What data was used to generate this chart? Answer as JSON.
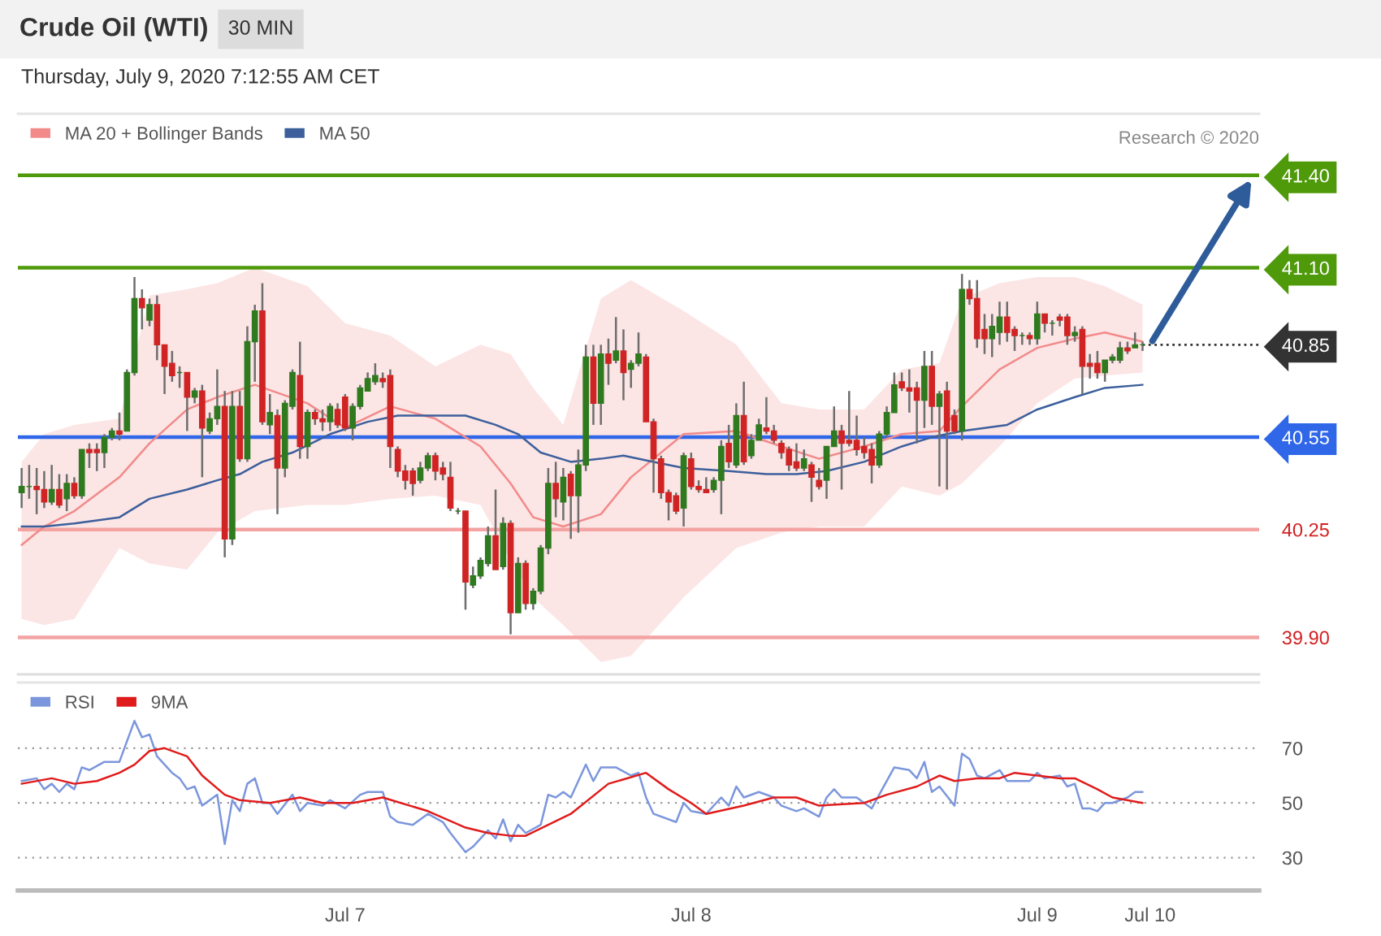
{
  "chart_data": [
    {
      "type": "candlestick",
      "title": "Crude Oil (WTI)",
      "subtitle": "Thursday, July 9, 2020 7:12:55 AM CET",
      "annotations": [
        "30 MIN",
        "Research © 2020"
      ],
      "ylim": [
        39.78,
        41.6
      ],
      "tick_labels": "y",
      "legend": "top left",
      "grid": false,
      "yticks": [
        {
          "value": 41.4,
          "label": "41.40"
        },
        {
          "value": 41.1,
          "label": "41.10"
        },
        {
          "value": 40.85,
          "label": "40.85"
        },
        {
          "value": 40.55,
          "label": "40.55"
        },
        {
          "value": 40.25,
          "label": "40.25"
        },
        {
          "value": 39.9,
          "label": "39.90"
        }
      ],
      "categories": [
        null,
        null,
        null,
        null,
        null,
        null,
        null,
        null,
        null,
        null,
        null,
        null,
        null,
        null,
        null,
        null,
        null,
        null,
        null,
        null,
        null,
        null,
        null,
        null,
        null,
        null,
        null,
        null,
        null,
        null,
        null,
        null,
        null,
        null,
        null,
        null,
        null,
        null,
        null,
        null,
        null,
        null,
        null,
        null,
        null,
        null,
        null,
        null,
        null,
        null,
        null,
        null,
        null,
        null,
        null,
        null,
        null,
        null,
        null,
        null,
        null,
        null,
        null,
        null,
        null,
        null,
        null,
        null,
        null,
        null,
        null,
        null,
        null,
        null,
        null,
        null,
        null,
        null,
        null,
        null,
        null,
        null,
        null,
        null,
        null,
        null,
        null,
        null,
        null,
        null,
        null,
        null,
        null,
        null,
        null,
        null,
        null,
        null,
        null,
        null,
        null,
        null,
        null,
        null,
        null,
        null,
        null,
        null,
        null,
        null,
        null,
        null,
        null,
        null,
        null,
        null,
        null,
        null,
        null,
        null,
        null,
        null,
        null,
        null,
        null,
        null,
        null,
        null,
        null,
        null,
        null,
        null,
        null,
        null,
        null,
        null,
        null,
        null,
        null,
        null,
        null,
        null,
        null,
        null,
        null,
        null,
        null,
        null,
        null,
        null,
        null,
        null,
        null,
        null,
        null,
        null,
        null,
        null,
        null,
        null,
        null,
        null,
        null,
        null,
        null
      ],
      "ohlc": [
        [
          40.37,
          40.45,
          40.32,
          40.39
        ],
        [
          40.39,
          40.46,
          40.35,
          40.39
        ],
        [
          40.39,
          40.45,
          40.3,
          40.38
        ],
        [
          40.38,
          40.44,
          40.32,
          40.34
        ],
        [
          40.34,
          40.46,
          40.33,
          40.38
        ],
        [
          40.38,
          40.43,
          40.32,
          40.33
        ],
        [
          40.35,
          40.43,
          40.31,
          40.4
        ],
        [
          40.4,
          40.42,
          40.35,
          40.36
        ],
        [
          40.36,
          40.51,
          40.35,
          40.51
        ],
        [
          40.51,
          40.53,
          40.45,
          40.5
        ],
        [
          40.51,
          40.53,
          40.44,
          40.5
        ],
        [
          40.5,
          40.56,
          40.45,
          40.55
        ],
        [
          40.55,
          40.58,
          40.54,
          40.57
        ],
        [
          40.57,
          40.63,
          40.54,
          40.56
        ],
        [
          40.57,
          40.77,
          40.57,
          40.76
        ],
        [
          40.76,
          41.07,
          40.75,
          41.0
        ],
        [
          41.0,
          41.03,
          40.9,
          40.97
        ],
        [
          40.93,
          41.0,
          40.91,
          40.98
        ],
        [
          40.98,
          41.01,
          40.8,
          40.85
        ],
        [
          40.85,
          40.85,
          40.69,
          40.78
        ],
        [
          40.79,
          40.83,
          40.73,
          40.75
        ],
        [
          40.76,
          40.78,
          40.71,
          40.76
        ],
        [
          40.76,
          40.76,
          40.57,
          40.68
        ],
        [
          40.68,
          40.71,
          40.66,
          40.7
        ],
        [
          40.7,
          40.72,
          40.42,
          40.58
        ],
        [
          40.57,
          40.63,
          40.56,
          40.61
        ],
        [
          40.61,
          40.77,
          40.59,
          40.65
        ],
        [
          40.65,
          40.7,
          40.16,
          40.22
        ],
        [
          40.22,
          40.7,
          40.2,
          40.65
        ],
        [
          40.65,
          40.7,
          40.47,
          40.48
        ],
        [
          40.48,
          40.91,
          40.47,
          40.86
        ],
        [
          40.86,
          40.98,
          40.73,
          40.96
        ],
        [
          40.96,
          41.05,
          40.59,
          40.6
        ],
        [
          40.59,
          40.69,
          40.56,
          40.63
        ],
        [
          40.62,
          40.64,
          40.3,
          40.45
        ],
        [
          40.45,
          40.67,
          40.42,
          40.66
        ],
        [
          40.65,
          40.77,
          40.64,
          40.76
        ],
        [
          40.75,
          40.86,
          40.48,
          40.52
        ],
        [
          40.52,
          40.64,
          40.48,
          40.63
        ],
        [
          40.63,
          40.64,
          40.59,
          40.61
        ],
        [
          40.61,
          40.64,
          40.57,
          40.6
        ],
        [
          40.6,
          40.66,
          40.57,
          40.65
        ],
        [
          40.64,
          40.66,
          40.58,
          40.59
        ],
        [
          40.68,
          40.69,
          40.57,
          40.58
        ],
        [
          40.58,
          40.66,
          40.54,
          40.65
        ],
        [
          40.65,
          40.72,
          40.64,
          40.71
        ],
        [
          40.7,
          40.76,
          40.7,
          40.74
        ],
        [
          40.73,
          40.79,
          40.72,
          40.75
        ],
        [
          40.74,
          40.76,
          40.71,
          40.73
        ],
        [
          40.75,
          40.77,
          40.45,
          40.52
        ],
        [
          40.51,
          40.52,
          40.42,
          40.44
        ],
        [
          40.44,
          40.46,
          40.38,
          40.41
        ],
        [
          40.44,
          40.45,
          40.36,
          40.4
        ],
        [
          40.41,
          40.47,
          40.4,
          40.45
        ],
        [
          40.45,
          40.5,
          40.44,
          40.49
        ],
        [
          40.49,
          40.5,
          40.41,
          40.44
        ],
        [
          40.45,
          40.47,
          40.41,
          40.43
        ],
        [
          40.42,
          40.47,
          40.31,
          40.32
        ],
        [
          40.31,
          40.32,
          40.3,
          40.31
        ],
        [
          40.31,
          40.31,
          39.99,
          40.08
        ],
        [
          40.07,
          40.13,
          40.06,
          40.1
        ],
        [
          40.1,
          40.16,
          40.09,
          40.15
        ],
        [
          40.14,
          40.26,
          40.13,
          40.23
        ],
        [
          40.23,
          40.38,
          40.12,
          40.12
        ],
        [
          40.13,
          40.29,
          40.12,
          40.27
        ],
        [
          40.27,
          40.28,
          39.91,
          39.98
        ],
        [
          39.98,
          40.16,
          39.98,
          40.14
        ],
        [
          40.14,
          40.15,
          39.99,
          40.01
        ],
        [
          40.01,
          40.06,
          39.99,
          40.05
        ],
        [
          40.05,
          40.2,
          40.04,
          40.19
        ],
        [
          40.19,
          40.45,
          40.17,
          40.4
        ],
        [
          40.4,
          40.47,
          40.29,
          40.35
        ],
        [
          40.34,
          40.45,
          40.28,
          40.42
        ],
        [
          40.43,
          40.44,
          40.22,
          40.36
        ],
        [
          40.36,
          40.51,
          40.24,
          40.46
        ],
        [
          40.46,
          40.85,
          40.44,
          40.81
        ],
        [
          40.81,
          40.85,
          40.59,
          40.66
        ],
        [
          40.66,
          40.85,
          40.59,
          40.82
        ],
        [
          40.82,
          40.87,
          40.72,
          40.79
        ],
        [
          40.8,
          40.94,
          40.79,
          40.83
        ],
        [
          40.83,
          40.9,
          40.67,
          40.76
        ],
        [
          40.77,
          40.8,
          40.71,
          40.79
        ],
        [
          40.79,
          40.89,
          40.78,
          40.82
        ],
        [
          40.81,
          40.82,
          40.6,
          40.6
        ],
        [
          40.6,
          40.61,
          40.37,
          40.48
        ],
        [
          40.48,
          40.49,
          40.35,
          40.37
        ],
        [
          40.37,
          40.38,
          40.28,
          40.34
        ],
        [
          40.36,
          40.37,
          40.3,
          40.31
        ],
        [
          40.32,
          40.5,
          40.26,
          40.49
        ],
        [
          40.48,
          40.5,
          40.38,
          40.39
        ],
        [
          40.39,
          40.41,
          40.37,
          40.38
        ],
        [
          40.38,
          40.42,
          40.37,
          40.37
        ],
        [
          40.38,
          40.42,
          40.37,
          40.41
        ],
        [
          40.41,
          40.54,
          40.3,
          40.52
        ],
        [
          40.53,
          40.59,
          40.45,
          40.47
        ],
        [
          40.46,
          40.66,
          40.45,
          40.62
        ],
        [
          40.62,
          40.73,
          40.46,
          40.47
        ],
        [
          40.49,
          40.56,
          40.48,
          40.54
        ],
        [
          40.54,
          40.61,
          40.54,
          40.59
        ],
        [
          40.58,
          40.68,
          40.56,
          40.57
        ],
        [
          40.57,
          40.59,
          40.53,
          40.54
        ],
        [
          40.53,
          40.54,
          40.48,
          40.5
        ],
        [
          40.51,
          40.52,
          40.44,
          40.46
        ],
        [
          40.47,
          40.53,
          40.44,
          40.45
        ],
        [
          40.45,
          40.51,
          40.44,
          40.48
        ],
        [
          40.46,
          40.47,
          40.34,
          40.42
        ],
        [
          40.41,
          40.45,
          40.38,
          40.39
        ],
        [
          40.41,
          40.52,
          40.35,
          40.52
        ],
        [
          40.52,
          40.65,
          40.52,
          40.57
        ],
        [
          40.57,
          40.59,
          40.38,
          40.53
        ],
        [
          40.54,
          40.7,
          40.52,
          40.53
        ],
        [
          40.54,
          40.62,
          40.49,
          40.51
        ],
        [
          40.52,
          40.55,
          40.48,
          40.5
        ],
        [
          40.51,
          40.53,
          40.4,
          40.46
        ],
        [
          40.46,
          40.57,
          40.45,
          40.56
        ],
        [
          40.56,
          40.65,
          40.55,
          40.63
        ],
        [
          40.63,
          40.76,
          40.63,
          40.72
        ],
        [
          40.73,
          40.76,
          40.7,
          40.71
        ],
        [
          40.71,
          40.77,
          40.63,
          40.7
        ],
        [
          40.71,
          40.73,
          40.53,
          40.67
        ],
        [
          40.67,
          40.83,
          40.58,
          40.78
        ],
        [
          40.78,
          40.83,
          40.59,
          40.65
        ],
        [
          40.65,
          40.7,
          40.39,
          40.69
        ],
        [
          40.7,
          40.73,
          40.38,
          40.57
        ],
        [
          40.62,
          40.64,
          40.56,
          40.57
        ],
        [
          40.57,
          41.08,
          40.54,
          41.03
        ],
        [
          41.03,
          41.06,
          40.98,
          41.0
        ],
        [
          41.0,
          41.06,
          40.84,
          40.87
        ],
        [
          40.9,
          40.95,
          40.82,
          40.87
        ],
        [
          40.87,
          40.95,
          40.81,
          40.91
        ],
        [
          40.89,
          40.99,
          40.85,
          40.94
        ],
        [
          40.94,
          40.99,
          40.86,
          40.89
        ],
        [
          40.9,
          40.91,
          40.83,
          40.88
        ],
        [
          40.88,
          40.89,
          40.85,
          40.88
        ],
        [
          40.88,
          40.89,
          40.85,
          40.87
        ],
        [
          40.87,
          40.99,
          40.85,
          40.95
        ],
        [
          40.95,
          40.95,
          40.89,
          40.92
        ],
        [
          40.92,
          40.93,
          40.88,
          40.92
        ],
        [
          40.94,
          40.95,
          40.91,
          40.93
        ],
        [
          40.94,
          40.95,
          40.85,
          40.88
        ],
        [
          40.88,
          40.91,
          40.86,
          40.89
        ],
        [
          40.9,
          40.91,
          40.69,
          40.78
        ],
        [
          40.79,
          40.82,
          40.74,
          40.78
        ],
        [
          40.79,
          40.83,
          40.74,
          40.76
        ],
        [
          40.76,
          40.8,
          40.73,
          40.8
        ],
        [
          40.8,
          40.82,
          40.79,
          40.81
        ],
        [
          40.8,
          40.86,
          40.79,
          40.84
        ],
        [
          40.84,
          40.86,
          40.82,
          40.83
        ],
        [
          40.84,
          40.89,
          40.84,
          40.85
        ],
        [
          40.85,
          40.86,
          40.83,
          40.85
        ],
        null,
        null,
        null,
        null,
        null,
        null,
        null,
        null,
        null,
        null,
        null,
        null,
        null,
        null,
        null
      ],
      "series": [
        {
          "name": "MA 20 + Bollinger Bands",
          "type": "line",
          "color": "#f28a8a",
          "values": [
            40.2,
            null,
            null,
            40.26,
            null,
            null,
            null,
            40.31,
            null,
            null,
            null,
            null,
            null,
            40.42,
            null,
            null,
            null,
            40.53,
            null,
            null,
            null,
            null,
            40.64,
            null,
            null,
            null,
            40.68,
            null,
            null,
            null,
            null,
            40.72,
            null,
            null,
            null,
            null,
            null,
            null,
            40.66,
            null,
            null,
            null,
            null,
            40.58,
            null,
            null,
            null,
            null,
            null,
            40.65,
            null,
            null,
            null,
            null,
            null,
            40.61,
            null,
            null,
            null,
            null,
            null,
            40.52,
            null,
            null,
            null,
            40.4,
            null,
            null,
            40.29,
            null,
            null,
            null,
            40.26,
            null,
            null,
            null,
            null,
            40.3,
            null,
            null,
            null,
            40.42,
            null,
            null,
            null,
            null,
            null,
            null,
            40.56,
            null,
            null,
            null,
            null,
            null,
            null,
            40.57,
            null,
            null,
            null,
            null,
            null,
            40.52,
            null,
            null,
            null,
            null,
            40.48,
            null,
            null,
            null,
            null,
            null,
            40.52,
            null,
            null,
            null,
            null,
            40.56,
            null,
            null,
            null,
            null,
            40.57,
            null,
            null,
            40.65,
            null,
            null,
            null,
            null,
            40.77,
            null,
            null,
            null,
            null,
            40.84,
            null,
            null,
            null,
            null,
            40.87,
            null,
            null,
            null,
            40.89,
            null,
            null,
            null,
            null,
            40.86,
            null,
            null,
            null,
            null,
            null,
            null,
            null,
            null,
            null,
            null,
            null,
            null,
            null,
            null,
            null
          ],
          "upper": [
            40.47,
            null,
            null,
            40.56,
            null,
            null,
            null,
            40.59,
            null,
            null,
            null,
            null,
            null,
            40.61,
            null,
            null,
            null,
            41.01,
            null,
            null,
            null,
            null,
            41.03,
            null,
            null,
            null,
            41.05,
            null,
            null,
            null,
            null,
            41.1,
            null,
            null,
            null,
            null,
            null,
            null,
            41.04,
            null,
            null,
            null,
            null,
            40.92,
            null,
            null,
            null,
            null,
            null,
            40.88,
            null,
            null,
            null,
            null,
            null,
            40.78,
            null,
            null,
            null,
            null,
            null,
            40.85,
            null,
            null,
            null,
            40.82,
            null,
            null,
            40.71,
            null,
            null,
            null,
            40.59,
            null,
            null,
            null,
            null,
            41.0,
            null,
            null,
            null,
            41.06,
            null,
            null,
            null,
            null,
            null,
            null,
            40.96,
            null,
            null,
            null,
            null,
            null,
            null,
            40.85,
            null,
            null,
            null,
            null,
            null,
            40.66,
            null,
            null,
            null,
            null,
            40.64,
            null,
            null,
            null,
            null,
            null,
            40.64,
            null,
            null,
            null,
            null,
            40.77,
            null,
            null,
            null,
            null,
            40.79,
            null,
            null,
            41.0,
            null,
            null,
            null,
            null,
            41.05,
            null,
            null,
            null,
            null,
            41.07,
            null,
            null,
            null,
            null,
            41.07,
            null,
            null,
            null,
            41.04,
            null,
            null,
            null,
            null,
            40.98,
            null,
            null,
            null,
            null,
            null,
            null,
            null,
            null,
            null,
            null,
            null,
            null,
            null,
            null,
            null
          ],
          "lower": [
            39.96,
            null,
            null,
            39.94,
            null,
            null,
            null,
            39.96,
            null,
            null,
            null,
            null,
            null,
            40.19,
            null,
            null,
            null,
            40.14,
            null,
            null,
            null,
            null,
            40.12,
            null,
            null,
            null,
            40.24,
            null,
            null,
            null,
            null,
            40.31,
            null,
            null,
            null,
            null,
            null,
            null,
            40.33,
            null,
            null,
            null,
            null,
            40.33,
            null,
            null,
            null,
            null,
            null,
            40.35,
            null,
            null,
            null,
            null,
            null,
            40.36,
            null,
            null,
            null,
            null,
            null,
            40.33,
            null,
            null,
            null,
            40.15,
            null,
            null,
            40.03,
            null,
            null,
            null,
            39.94,
            null,
            null,
            null,
            null,
            39.82,
            null,
            null,
            null,
            39.84,
            null,
            null,
            null,
            null,
            null,
            null,
            40.03,
            null,
            null,
            null,
            null,
            null,
            null,
            40.19,
            null,
            null,
            null,
            null,
            null,
            40.24,
            null,
            null,
            null,
            null,
            40.26,
            null,
            null,
            null,
            null,
            null,
            40.26,
            null,
            null,
            null,
            null,
            40.39,
            null,
            null,
            null,
            null,
            40.36,
            null,
            null,
            40.4,
            null,
            null,
            null,
            null,
            40.52,
            null,
            null,
            null,
            null,
            40.66,
            null,
            null,
            null,
            null,
            40.74,
            null,
            null,
            null,
            40.75,
            null,
            null,
            null,
            null,
            40.76,
            null,
            null,
            null,
            null,
            null,
            null,
            null,
            null,
            null,
            null,
            null,
            null,
            null,
            null,
            null
          ]
        },
        {
          "name": "MA 50",
          "type": "line",
          "color": "#3c5f9c",
          "values": [
            40.26,
            null,
            null,
            40.26,
            null,
            null,
            null,
            40.27,
            null,
            null,
            null,
            null,
            null,
            40.29,
            null,
            null,
            null,
            40.35,
            null,
            null,
            null,
            null,
            40.38,
            null,
            null,
            null,
            40.41,
            null,
            null,
            40.43,
            null,
            null,
            40.47,
            null,
            null,
            null,
            40.5,
            null,
            null,
            null,
            null,
            40.56,
            null,
            null,
            null,
            null,
            40.6,
            null,
            null,
            null,
            40.62,
            null,
            null,
            null,
            40.62,
            null,
            null,
            null,
            null,
            40.62,
            null,
            null,
            null,
            40.59,
            null,
            null,
            40.56,
            null,
            null,
            40.5,
            null,
            null,
            null,
            40.47,
            null,
            null,
            null,
            40.48,
            null,
            null,
            40.49,
            null,
            null,
            null,
            40.47,
            null,
            null,
            null,
            40.45,
            null,
            null,
            null,
            null,
            null,
            40.44,
            null,
            null,
            null,
            null,
            40.43,
            null,
            null,
            null,
            40.43,
            null,
            null,
            null,
            40.44,
            null,
            null,
            null,
            null,
            40.47,
            null,
            null,
            null,
            null,
            40.52,
            null,
            null,
            null,
            40.55,
            null,
            null,
            null,
            40.57,
            null,
            null,
            null,
            null,
            null,
            40.59,
            null,
            null,
            null,
            40.64,
            null,
            null,
            null,
            null,
            40.68,
            null,
            null,
            null,
            40.71,
            null,
            null,
            null,
            null,
            40.72,
            null,
            null,
            null,
            null,
            null,
            null,
            null,
            null,
            null,
            null,
            null,
            null,
            null,
            null,
            null
          ]
        }
      ],
      "ref_lines": [
        {
          "axis": "y",
          "value": 41.4,
          "color": "#4f9a0a"
        },
        {
          "axis": "y",
          "value": 41.1,
          "color": "#4f9a0a"
        },
        {
          "axis": "y",
          "value": 40.85,
          "color": "#333333",
          "line_style": "dotted"
        },
        {
          "axis": "y",
          "value": 40.55,
          "color": "#2f67e8"
        },
        {
          "axis": "y",
          "value": 40.25,
          "color": "#f4a3a3"
        },
        {
          "axis": "y",
          "value": 39.9,
          "color": "#f4a3a3"
        }
      ]
    },
    {
      "type": "line",
      "ylim": [
        18,
        94
      ],
      "legend": "top left",
      "grid": "y",
      "categories": [
        null,
        null,
        null,
        null,
        null,
        null,
        null,
        null,
        null,
        null,
        null,
        null,
        null,
        null,
        null,
        null,
        null,
        null,
        null,
        null,
        null,
        null,
        null,
        null,
        null,
        null,
        null,
        null,
        null,
        null,
        null,
        null,
        null,
        null,
        null,
        null,
        null,
        null,
        null,
        null,
        null,
        null,
        null,
        "Jul 7",
        null,
        null,
        null,
        null,
        null,
        null,
        null,
        null,
        null,
        null,
        null,
        null,
        null,
        null,
        null,
        null,
        null,
        null,
        null,
        null,
        null,
        null,
        null,
        null,
        null,
        null,
        null,
        null,
        null,
        null,
        null,
        null,
        null,
        null,
        null,
        null,
        null,
        null,
        null,
        null,
        null,
        null,
        null,
        null,
        null,
        "Jul 8",
        null,
        null,
        null,
        null,
        null,
        null,
        null,
        null,
        null,
        null,
        null,
        null,
        null,
        null,
        null,
        null,
        null,
        null,
        null,
        null,
        null,
        null,
        null,
        null,
        null,
        null,
        null,
        null,
        null,
        null,
        null,
        null,
        null,
        null,
        null,
        null,
        null,
        null,
        null,
        null,
        null,
        null,
        null,
        null,
        null,
        "Jul 9",
        null,
        null,
        null,
        null,
        null,
        null,
        null,
        null,
        null,
        null,
        null,
        null,
        null,
        null,
        "Jul 10",
        null,
        null,
        null,
        null,
        null,
        null,
        null,
        null,
        null,
        null,
        null,
        null,
        null,
        null
      ],
      "yticks": [
        30,
        50,
        70
      ],
      "series": [
        {
          "name": "RSI",
          "color": "#7b96dc",
          "values": [
            58,
            null,
            59,
            55,
            57,
            54,
            57,
            55,
            63,
            62,
            null,
            65,
            65,
            65,
            null,
            80,
            74,
            75,
            67,
            null,
            61,
            59,
            55,
            56,
            49,
            null,
            53,
            35,
            51,
            47,
            57,
            59,
            50,
            50,
            46,
            null,
            53,
            47,
            50,
            null,
            49,
            51,
            null,
            48,
            null,
            53,
            54,
            null,
            54,
            45,
            43,
            null,
            42,
            null,
            46,
            null,
            43,
            39,
            null,
            32,
            34,
            null,
            40,
            37,
            44,
            36,
            42,
            39,
            null,
            42,
            53,
            52,
            54,
            52,
            null,
            64,
            58,
            63,
            null,
            63,
            null,
            60,
            61,
            52,
            46,
            null,
            null,
            43,
            50,
            47,
            null,
            46,
            null,
            52,
            49,
            56,
            52,
            null,
            54,
            null,
            52,
            49,
            null,
            47,
            48,
            null,
            45,
            52,
            55,
            52,
            null,
            52,
            null,
            48,
            null,
            null,
            63,
            null,
            62,
            59,
            65,
            54,
            56,
            null,
            49,
            68,
            66,
            60,
            59,
            null,
            62,
            58,
            null,
            null,
            58,
            61,
            59,
            null,
            60,
            56,
            57,
            48,
            48,
            47,
            50,
            50,
            null,
            52,
            54,
            54,
            null,
            null,
            null,
            null,
            null,
            null,
            null,
            null,
            null,
            null,
            null,
            null,
            null,
            null,
            null
          ]
        },
        {
          "name": "9MA",
          "color": "#e01b1b",
          "values": [
            57,
            null,
            null,
            null,
            59,
            null,
            null,
            57,
            null,
            null,
            58,
            null,
            null,
            61,
            null,
            64,
            null,
            69,
            null,
            70,
            null,
            null,
            67,
            null,
            60,
            null,
            null,
            53,
            null,
            51,
            null,
            null,
            null,
            50,
            null,
            null,
            null,
            52,
            null,
            null,
            50,
            null,
            null,
            null,
            50,
            null,
            null,
            null,
            52,
            null,
            null,
            null,
            null,
            null,
            47,
            null,
            null,
            null,
            null,
            41,
            null,
            null,
            39,
            null,
            null,
            38,
            null,
            38,
            null,
            null,
            42,
            null,
            null,
            46,
            null,
            null,
            null,
            null,
            57,
            null,
            null,
            null,
            null,
            61,
            null,
            null,
            55,
            null,
            null,
            50,
            null,
            46,
            null,
            null,
            null,
            null,
            49,
            null,
            null,
            null,
            52,
            null,
            null,
            52,
            null,
            null,
            49,
            null,
            null,
            null,
            null,
            null,
            50,
            null,
            null,
            53,
            null,
            null,
            null,
            56,
            null,
            null,
            60,
            null,
            58,
            null,
            null,
            59,
            null,
            null,
            59,
            null,
            61,
            null,
            null,
            60,
            null,
            null,
            59,
            null,
            59,
            null,
            null,
            55,
            null,
            52,
            null,
            null,
            null,
            50,
            null,
            null,
            null,
            null,
            null,
            null,
            null,
            null,
            null,
            null,
            null,
            null,
            null,
            null,
            null
          ]
        }
      ]
    }
  ]
}
